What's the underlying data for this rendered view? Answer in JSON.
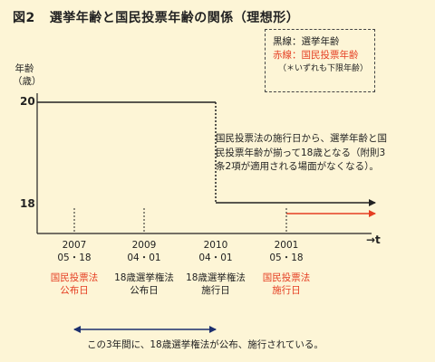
{
  "title": {
    "figure_number": "図2",
    "text": "選挙年齢と国民投票年齢の関係（理想形）"
  },
  "y_axis": {
    "label_line1": "年齢",
    "label_line2": "（歳）",
    "tick_high": "20",
    "tick_low": "18"
  },
  "legend": {
    "black_line": "黒線：選挙年齢",
    "red_line": "赤線：国民投票年齢",
    "note": "（＊いずれも下限年齢）"
  },
  "annotation": "国民投票法の施行日から、選挙年齢と国民投票年齢が揃って18歳となる（附則3条2項が適用される場面がなくなる）。",
  "x_axis": {
    "t_label": "→t",
    "dates": [
      {
        "year": "2007",
        "md": "05・18",
        "event_line1": "国民投票法",
        "event_line2": "公布日",
        "highlight": true
      },
      {
        "year": "2009",
        "md": "04・01",
        "event_line1": "18歳選挙権法",
        "event_line2": "公布日",
        "highlight": false
      },
      {
        "year": "2010",
        "md": "04・01",
        "event_line1": "18歳選挙権法",
        "event_line2": "施行日",
        "highlight": false
      },
      {
        "year": "2001",
        "md": "05・18",
        "event_line1": "国民投票法",
        "event_line2": "施行日",
        "highlight": true
      }
    ]
  },
  "bottom_note": "この3年間に、18歳選挙権法が公布、施行されている。",
  "colors": {
    "background": "#fdf5d6",
    "black_line": "#222222",
    "red_line": "#e53e22",
    "blue_arrow": "#1c2f6e"
  }
}
